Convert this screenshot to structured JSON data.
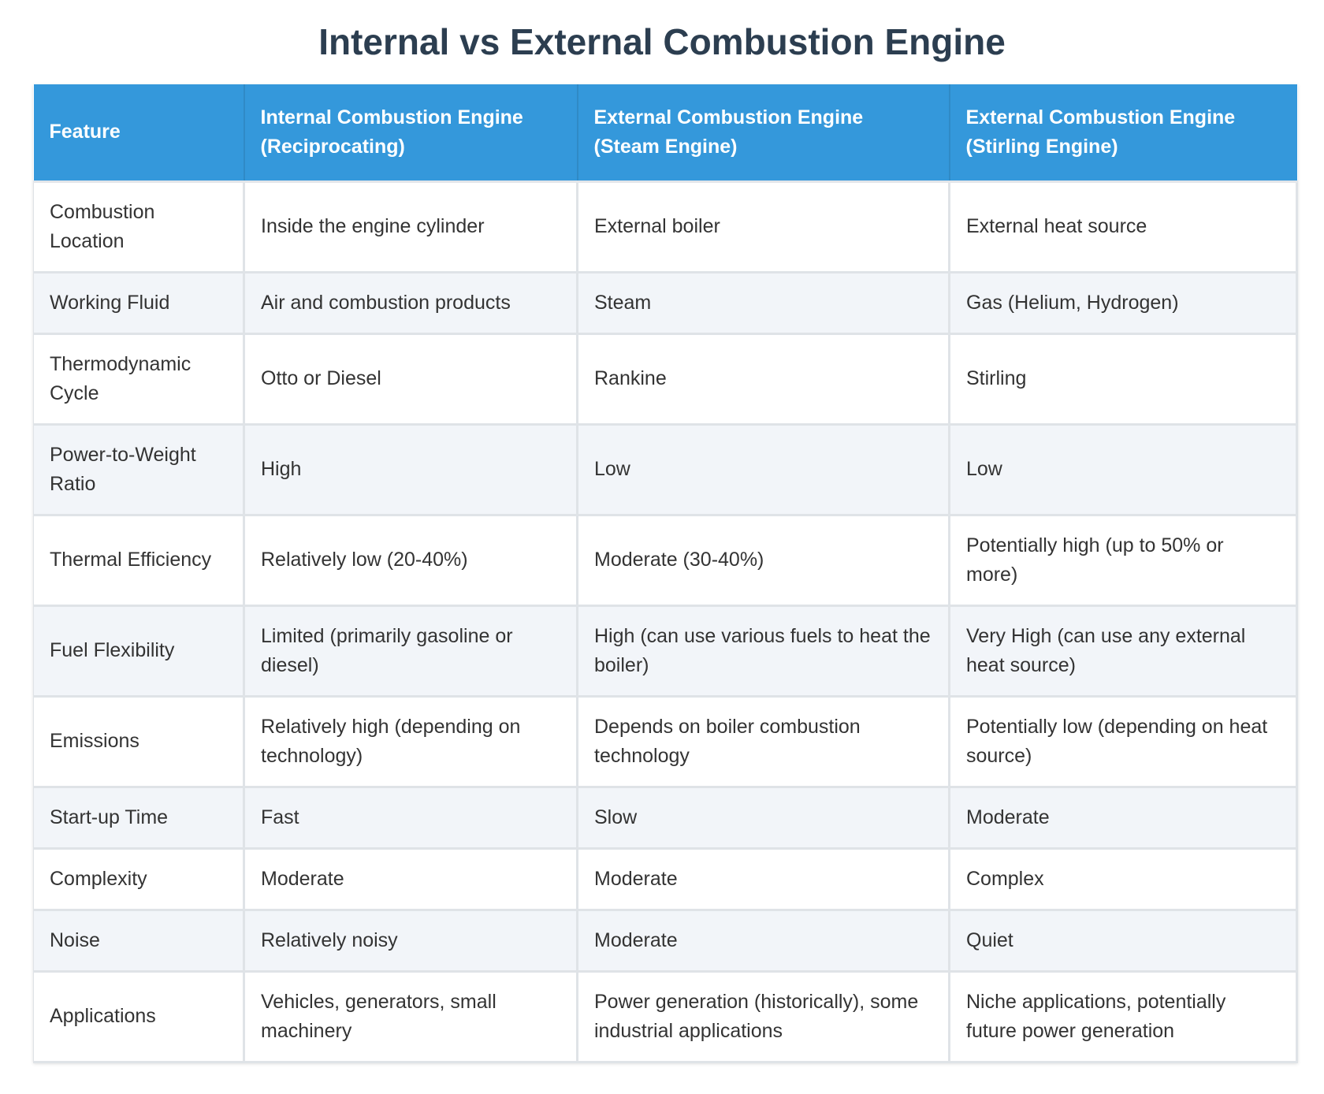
{
  "title": "Internal vs External Combustion Engine",
  "table": {
    "headers": [
      "Feature",
      "Internal Combustion Engine (Reciprocating)",
      "External Combustion Engine (Steam Engine)",
      "External Combustion Engine (Stirling Engine)"
    ],
    "rows": [
      [
        "Combustion Location",
        "Inside the engine cylinder",
        "External boiler",
        "External heat source"
      ],
      [
        "Working Fluid",
        "Air and combustion products",
        "Steam",
        "Gas (Helium, Hydrogen)"
      ],
      [
        "Thermodynamic Cycle",
        "Otto or Diesel",
        "Rankine",
        "Stirling"
      ],
      [
        "Power-to-Weight Ratio",
        "High",
        "Low",
        "Low"
      ],
      [
        "Thermal Efficiency",
        "Relatively low (20-40%)",
        "Moderate (30-40%)",
        "Potentially high (up to 50% or more)"
      ],
      [
        "Fuel Flexibility",
        "Limited (primarily gasoline or diesel)",
        "High (can use various fuels to heat the boiler)",
        "Very High (can use any external heat source)"
      ],
      [
        "Emissions",
        "Relatively high (depending on technology)",
        "Depends on boiler combustion technology",
        "Potentially low (depending on heat source)"
      ],
      [
        "Start-up Time",
        "Fast",
        "Slow",
        "Moderate"
      ],
      [
        "Complexity",
        "Moderate",
        "Moderate",
        "Complex"
      ],
      [
        "Noise",
        "Relatively noisy",
        "Moderate",
        "Quiet"
      ],
      [
        "Applications",
        "Vehicles, generators, small machinery",
        "Power generation (historically), some industrial applications",
        "Niche applications, potentially future power generation"
      ]
    ]
  },
  "colors": {
    "header_bg": "#3498db",
    "title": "#2c3e50",
    "row_alt": "#f2f5f9"
  }
}
